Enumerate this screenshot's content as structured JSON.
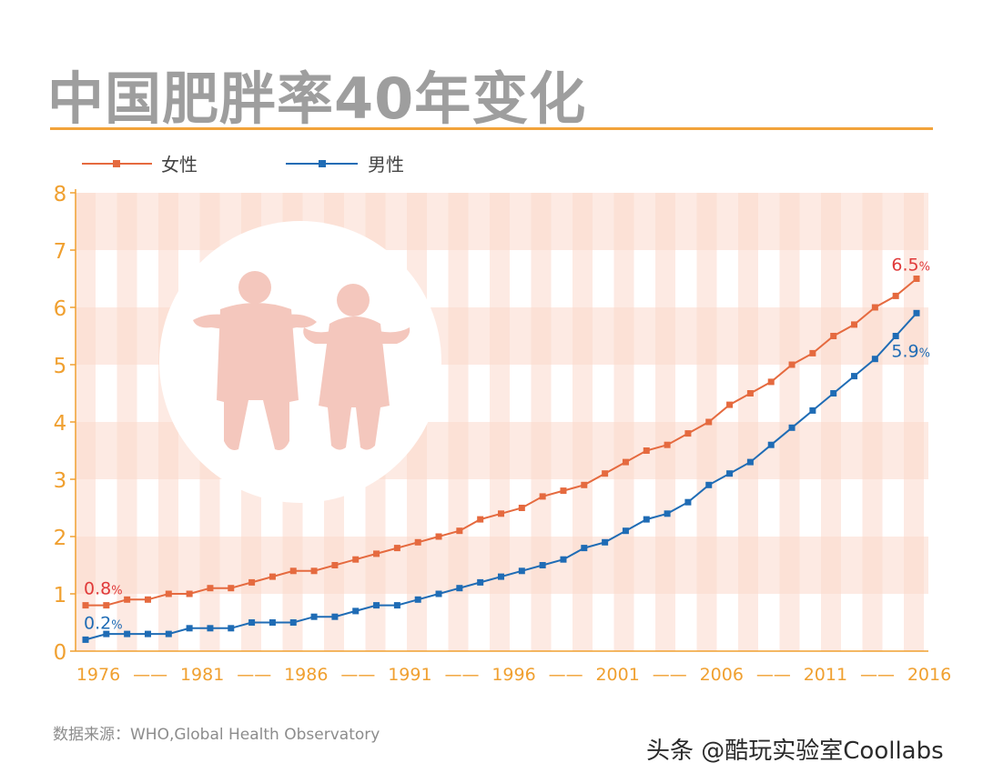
{
  "title": "中国肥胖率40年变化",
  "source": "数据来源：WHO,Global Health Observatory",
  "watermark": "头条 @酷玩实验室Coollabs",
  "colors": {
    "female": "#e56a3f",
    "male": "#1f6cb5",
    "axis_text": "#f0a030",
    "title": "#9e9e9e",
    "band": "#fbd8cc",
    "silhouette": "#f4c7bd",
    "female_label": "#e03a3a"
  },
  "chart_data": {
    "type": "line",
    "x": [
      1976,
      1977,
      1978,
      1979,
      1980,
      1981,
      1982,
      1983,
      1984,
      1985,
      1986,
      1987,
      1988,
      1989,
      1990,
      1991,
      1992,
      1993,
      1994,
      1995,
      1996,
      1997,
      1998,
      1999,
      2000,
      2001,
      2002,
      2003,
      2004,
      2005,
      2006,
      2007,
      2008,
      2009,
      2010,
      2011,
      2012,
      2013,
      2014,
      2015,
      2016
    ],
    "x_tick_labels": [
      "1976",
      "1981",
      "1986",
      "1991",
      "1996",
      "2001",
      "2006",
      "2011",
      "2016"
    ],
    "x_tick_sep": "——",
    "ylim": [
      0,
      8
    ],
    "y_ticks": [
      "0",
      "1",
      "2",
      "3",
      "4",
      "5",
      "6",
      "7",
      "8"
    ],
    "series": [
      {
        "name": "女性",
        "key": "female",
        "values": [
          0.8,
          0.8,
          0.9,
          0.9,
          1.0,
          1.0,
          1.1,
          1.1,
          1.2,
          1.3,
          1.4,
          1.4,
          1.5,
          1.6,
          1.7,
          1.8,
          1.9,
          2.0,
          2.1,
          2.3,
          2.4,
          2.5,
          2.7,
          2.8,
          2.9,
          3.1,
          3.3,
          3.5,
          3.6,
          3.8,
          4.0,
          4.3,
          4.5,
          4.7,
          5.0,
          5.2,
          5.5,
          5.7,
          6.0,
          6.2,
          6.5
        ]
      },
      {
        "name": "男性",
        "key": "male",
        "values": [
          0.2,
          0.3,
          0.3,
          0.3,
          0.3,
          0.4,
          0.4,
          0.4,
          0.5,
          0.5,
          0.5,
          0.6,
          0.6,
          0.7,
          0.8,
          0.8,
          0.9,
          1.0,
          1.1,
          1.2,
          1.3,
          1.4,
          1.5,
          1.6,
          1.8,
          1.9,
          2.1,
          2.3,
          2.4,
          2.6,
          2.9,
          3.1,
          3.3,
          3.6,
          3.9,
          4.2,
          4.5,
          4.8,
          5.1,
          5.5,
          5.9
        ]
      }
    ],
    "annotations": [
      {
        "text": "0.8",
        "unit": "%",
        "series": "female",
        "at": "start"
      },
      {
        "text": "0.2",
        "unit": "%",
        "series": "male",
        "at": "start"
      },
      {
        "text": "6.5",
        "unit": "%",
        "series": "female",
        "at": "end"
      },
      {
        "text": "5.9",
        "unit": "%",
        "series": "male",
        "at": "end"
      }
    ],
    "legend": "top-left",
    "grid": true
  }
}
